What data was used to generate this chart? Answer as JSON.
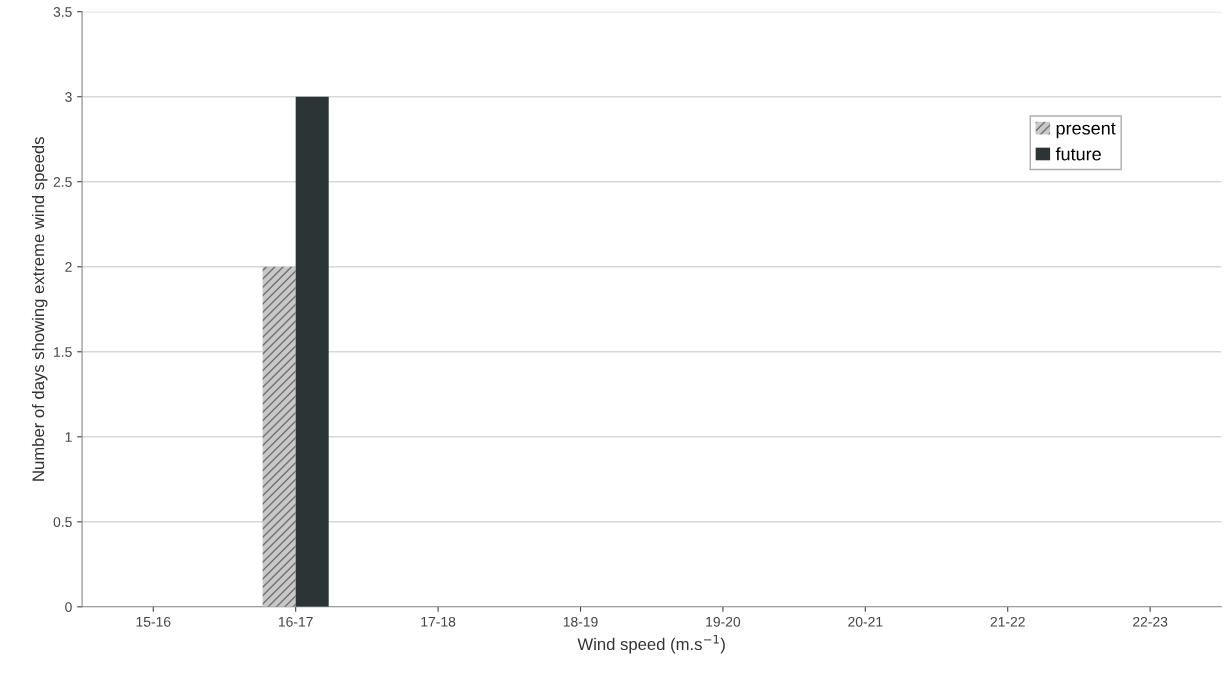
{
  "chart_data": {
    "type": "bar",
    "xlabel": "Wind speed (m.s$^{−1}$)",
    "ylabel": "Number of days showing extreme wind speeds",
    "categories": [
      "15-16",
      "16-17",
      "17-18",
      "18-19",
      "19-20",
      "20-21",
      "21-22",
      "22-23"
    ],
    "series": [
      {
        "name": "present",
        "color": "#c8c8c8",
        "values": [
          0,
          2,
          0,
          0,
          0,
          0,
          0,
          0
        ]
      },
      {
        "name": "future",
        "color": "#2b3535",
        "values": [
          0,
          3,
          0,
          0,
          0,
          0,
          0,
          0
        ]
      }
    ],
    "ylim": [
      0,
      3.5
    ],
    "yticks": [
      0,
      0.5,
      1,
      1.5,
      2,
      2.5,
      3,
      3.5
    ],
    "grid": "y",
    "legend": "top right"
  }
}
